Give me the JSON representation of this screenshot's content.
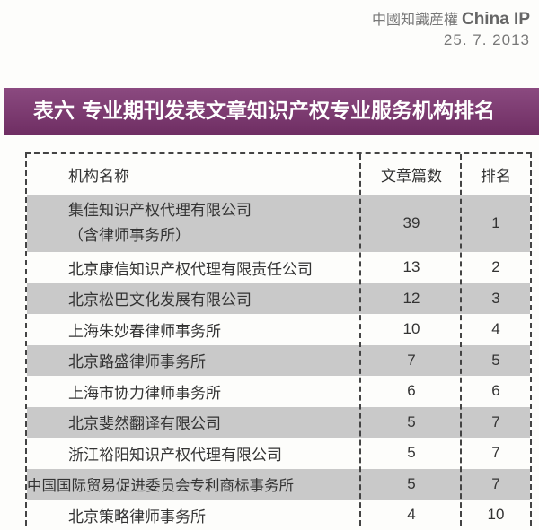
{
  "masthead": {
    "publication_cn": "中國知識産權",
    "publication_en": "China IP",
    "date": "25. 7. 2013"
  },
  "title": "表六  专业期刊发表文章知识产权专业服务机构排名",
  "table": {
    "headers": [
      "机构名称",
      "文章篇数",
      "排名"
    ],
    "rows": [
      {
        "name": "集佳知识产权代理有限公司\n（含律师事务所）",
        "name_line1": "集佳知识产权代理有限公司",
        "name_line2": "（含律师事务所）",
        "count": "39",
        "rank": "1",
        "shaded": true
      },
      {
        "name": "北京康信知识产权代理有限责任公司",
        "count": "13",
        "rank": "2",
        "shaded": false
      },
      {
        "name": "北京松巴文化发展有限公司",
        "count": "12",
        "rank": "3",
        "shaded": true
      },
      {
        "name": "上海朱妙春律师事务所",
        "count": "10",
        "rank": "4",
        "shaded": false
      },
      {
        "name": "北京路盛律师事务所",
        "count": "7",
        "rank": "5",
        "shaded": true
      },
      {
        "name": "上海市协力律师事务所",
        "count": "6",
        "rank": "6",
        "shaded": false
      },
      {
        "name": "北京斐然翻译有限公司",
        "count": "5",
        "rank": "7",
        "shaded": true
      },
      {
        "name": "浙江裕阳知识产权代理有限公司",
        "count": "5",
        "rank": "7",
        "shaded": false
      },
      {
        "name": "中国国际贸易促进委员会专利商标事务所",
        "count": "5",
        "rank": "7",
        "shaded": true
      },
      {
        "name": "北京策略律师事务所",
        "count": "4",
        "rank": "10",
        "shaded": false
      }
    ]
  },
  "colors": {
    "title_bar": "#7d3a72",
    "shade": "#c9c9c9"
  }
}
